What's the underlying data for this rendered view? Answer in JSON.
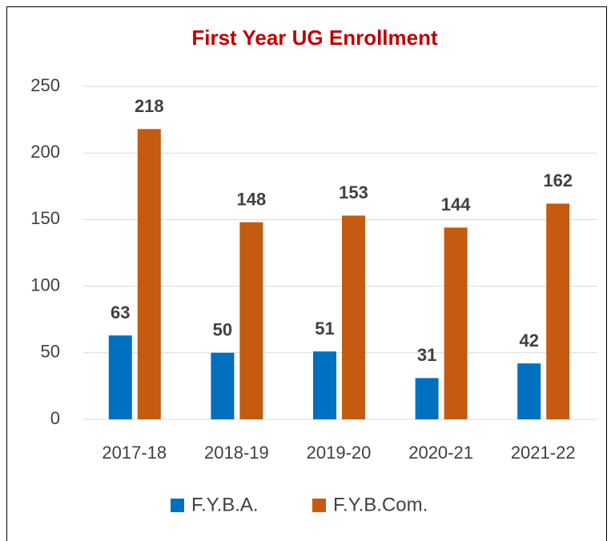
{
  "chart_data": {
    "type": "bar",
    "title": "First Year UG Enrollment",
    "categories": [
      "2017-18",
      "2018-19",
      "2019-20",
      "2020-21",
      "2021-22"
    ],
    "series": [
      {
        "name": "F.Y.B.A.",
        "color": "#0070c0",
        "values": [
          63,
          50,
          51,
          31,
          42
        ]
      },
      {
        "name": "F.Y.B.Com.",
        "color": "#c55a11",
        "values": [
          218,
          148,
          153,
          144,
          162
        ]
      }
    ],
    "ylim": [
      0,
      250
    ],
    "yticks": [
      0,
      50,
      100,
      150,
      200,
      250
    ],
    "grid": true,
    "legend": "bottom"
  }
}
